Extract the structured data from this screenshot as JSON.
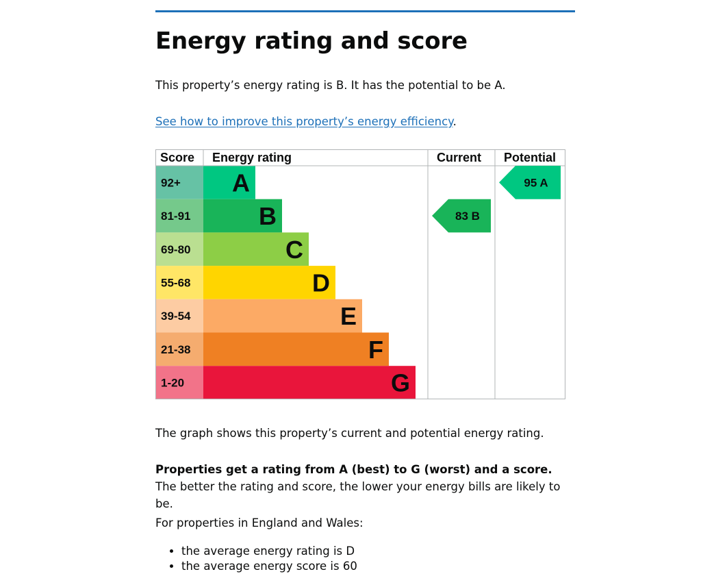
{
  "page": {
    "title": "Energy rating and score",
    "intro": "This property’s energy rating is B. It has the potential to be A.",
    "improve_link": "See how to improve this property’s energy efficiency",
    "improve_link_suffix": ".",
    "graph_caption": "The graph shows this property’s current and potential energy rating.",
    "rating_explainer_bold": "Properties get a rating from A (best) to G (worst) and a score.",
    "rating_explainer_rest": " The better the rating and score, the lower your energy bills are likely to be.",
    "region_intro": "For properties in England and Wales:",
    "averages": [
      "the average energy rating is D",
      "the average energy score is 60"
    ]
  },
  "chart_data": {
    "type": "table",
    "headers": {
      "score": "Score",
      "rating": "Energy rating",
      "current": "Current",
      "potential": "Potential"
    },
    "bands": [
      {
        "letter": "A",
        "range": "92+",
        "color": "#008054",
        "score_bg": "#66c2a5",
        "bar_color": "#00c781"
      },
      {
        "letter": "B",
        "range": "81-91",
        "color": "#19b459",
        "score_bg": "#75c98b",
        "bar_color": "#19b459"
      },
      {
        "letter": "C",
        "range": "69-80",
        "color": "#8dce46",
        "score_bg": "#badf91",
        "bar_color": "#8dce46"
      },
      {
        "letter": "D",
        "range": "55-68",
        "color": "#ffd500",
        "score_bg": "#ffe666",
        "bar_color": "#ffd500"
      },
      {
        "letter": "E",
        "range": "39-54",
        "color": "#fcaa65",
        "score_bg": "#fdcca3",
        "bar_color": "#fcaa65"
      },
      {
        "letter": "F",
        "range": "21-38",
        "color": "#ef8023",
        "score_bg": "#f5ac6f",
        "bar_color": "#ef8023"
      },
      {
        "letter": "G",
        "range": "1-20",
        "color": "#e9153b",
        "score_bg": "#f27389",
        "bar_color": "#e9153b"
      }
    ],
    "current": {
      "score": 83,
      "letter": "B",
      "label": "83 B",
      "color": "#19b459"
    },
    "potential": {
      "score": 95,
      "letter": "A",
      "label": "95 A",
      "color": "#00c781"
    }
  }
}
